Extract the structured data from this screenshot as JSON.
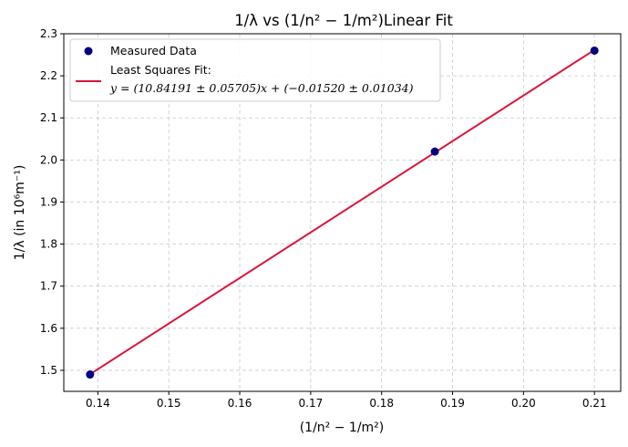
{
  "chart_data": {
    "type": "scatter",
    "title": "1/λ vs (1/n² − 1/m²)Linear Fit",
    "xlabel": "(1/n² − 1/m²)",
    "ylabel": "1/λ (in 10⁶m⁻¹)",
    "xlim": [
      0.1352,
      0.2137
    ],
    "ylim": [
      1.45,
      2.3
    ],
    "xticks": [
      0.14,
      0.15,
      0.16,
      0.17,
      0.18,
      0.19,
      0.2,
      0.21
    ],
    "xtick_labels": [
      "0.14",
      "0.15",
      "0.16",
      "0.17",
      "0.18",
      "0.19",
      "0.20",
      "0.21"
    ],
    "yticks": [
      1.5,
      1.6,
      1.7,
      1.8,
      1.9,
      2.0,
      2.1,
      2.2,
      2.3
    ],
    "ytick_labels": [
      "1.5",
      "1.6",
      "1.7",
      "1.8",
      "1.9",
      "2.0",
      "2.1",
      "2.2",
      "2.3"
    ],
    "grid": true,
    "legend_position": "top-left",
    "series": [
      {
        "name": "Measured Data",
        "kind": "scatter",
        "color": "#000080",
        "x": [
          0.1389,
          0.1875,
          0.21
        ],
        "y": [
          1.49,
          2.02,
          2.26
        ]
      },
      {
        "name": "Least Squares Fit:",
        "equation": "y = (10.84191 ± 0.05705)x + (−0.01520 ± 0.01034)",
        "kind": "line",
        "color": "#dc143c",
        "slope": 10.84191,
        "intercept": -0.0152,
        "x": [
          0.1389,
          0.21
        ]
      }
    ]
  }
}
